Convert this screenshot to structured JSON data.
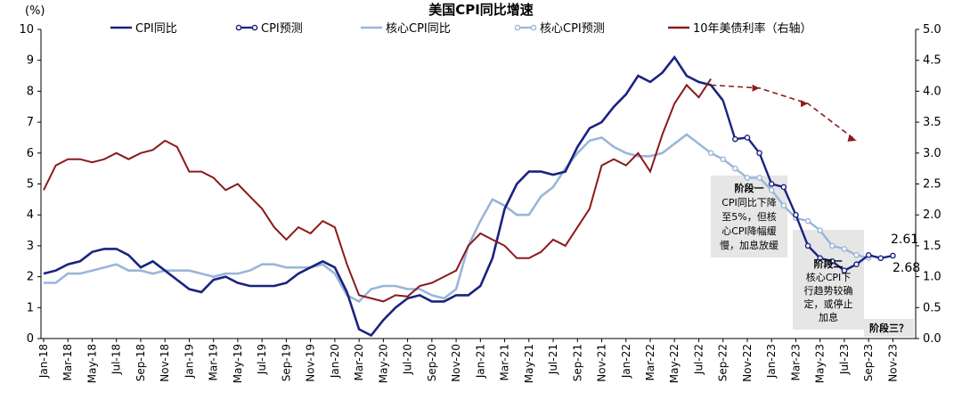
{
  "chart_data": {
    "type": "line",
    "title": "美国CPI同比增速",
    "y_unit": "(%)",
    "ylim_left": [
      0,
      10
    ],
    "ylim_right": [
      0,
      5
    ],
    "yticks_left": [
      "0",
      "1",
      "2",
      "3",
      "4",
      "5",
      "6",
      "7",
      "8",
      "9",
      "10"
    ],
    "yticks_right": [
      "0.0",
      "0.5",
      "1.0",
      "1.5",
      "2.0",
      "2.5",
      "3.0",
      "3.5",
      "4.0",
      "4.5",
      "5.0"
    ],
    "x_ticks": [
      "Jan-18",
      "Mar-18",
      "May-18",
      "Jul-18",
      "Sep-18",
      "Nov-18",
      "Jan-19",
      "Mar-19",
      "May-19",
      "Jul-19",
      "Sep-19",
      "Nov-19",
      "Jan-20",
      "Mar-20",
      "May-20",
      "Jul-20",
      "Sep-20",
      "Nov-20",
      "Jan-21",
      "Mar-21",
      "May-21",
      "Jul-21",
      "Sep-21",
      "Nov-21",
      "Jan-22",
      "Mar-22",
      "May-22",
      "Jul-22",
      "Sep-22",
      "Nov-22",
      "Jan-23",
      "Mar-23",
      "May-23",
      "Jul-23",
      "Sep-23",
      "Nov-23"
    ],
    "legend": [
      "CPI同比",
      "CPI预测",
      "核心CPI同比",
      "核心CPI预测",
      "10年美债利率（右轴）"
    ],
    "series": [
      {
        "name": "CPI同比",
        "color": "#1a237e",
        "values": [
          2.1,
          2.2,
          2.4,
          2.5,
          2.8,
          2.9,
          2.9,
          2.7,
          2.3,
          2.5,
          2.2,
          1.9,
          1.6,
          1.5,
          1.9,
          2.0,
          1.8,
          1.7,
          1.7,
          1.7,
          1.8,
          2.1,
          2.3,
          2.5,
          2.3,
          1.5,
          0.3,
          0.1,
          0.6,
          1.0,
          1.3,
          1.4,
          1.2,
          1.2,
          1.4,
          1.4,
          1.7,
          2.6,
          4.2,
          5.0,
          5.4,
          5.4,
          5.3,
          5.4,
          6.2,
          6.8,
          7.0,
          7.5,
          7.9,
          8.5,
          8.3,
          8.6,
          9.1,
          8.5,
          8.3,
          8.2,
          7.7
        ]
      },
      {
        "name": "CPI预测",
        "color": "#1a237e",
        "values": [
          7.7,
          6.45,
          6.5,
          6.0,
          5.0,
          4.9,
          4.0,
          3.0,
          2.6,
          2.5,
          2.2,
          2.4,
          2.7,
          2.6,
          2.68
        ]
      },
      {
        "name": "核心CPI同比",
        "color": "#9ab6d8",
        "values": [
          1.8,
          1.8,
          2.1,
          2.1,
          2.2,
          2.3,
          2.4,
          2.2,
          2.2,
          2.1,
          2.2,
          2.2,
          2.2,
          2.1,
          2.0,
          2.1,
          2.1,
          2.2,
          2.4,
          2.4,
          2.3,
          2.3,
          2.3,
          2.4,
          2.1,
          1.4,
          1.2,
          1.6,
          1.7,
          1.7,
          1.6,
          1.6,
          1.4,
          1.3,
          1.6,
          3.0,
          3.8,
          4.5,
          4.3,
          4.0,
          4.0,
          4.6,
          4.9,
          5.5,
          6.0,
          6.4,
          6.5,
          6.2,
          6.0,
          5.9,
          5.9,
          6.0,
          6.3,
          6.6,
          6.3
        ]
      },
      {
        "name": "核心CPI预测",
        "color": "#9ab6d8",
        "values": [
          6.3,
          6.0,
          5.8,
          5.5,
          5.2,
          5.2,
          4.8,
          4.3,
          3.9,
          3.8,
          3.5,
          3.0,
          2.9,
          2.7,
          2.61
        ]
      },
      {
        "name": "10年美债利率（右轴）",
        "color": "#8b1a1a",
        "values": [
          2.4,
          2.8,
          2.9,
          2.9,
          2.85,
          2.9,
          3.0,
          2.9,
          3.0,
          3.05,
          3.2,
          3.1,
          2.7,
          2.7,
          2.6,
          2.4,
          2.5,
          2.3,
          2.1,
          1.8,
          1.6,
          1.8,
          1.7,
          1.9,
          1.8,
          1.2,
          0.7,
          0.65,
          0.6,
          0.7,
          0.68,
          0.85,
          0.9,
          1.0,
          1.1,
          1.5,
          1.7,
          1.6,
          1.5,
          1.3,
          1.3,
          1.4,
          1.6,
          1.5,
          1.8,
          2.1,
          2.8,
          2.9,
          2.8,
          3.0,
          2.7,
          3.3,
          3.8,
          4.1,
          3.9,
          4.2
        ]
      },
      {
        "name": "10年美债利率预测",
        "color": "#8b1a1a",
        "values": [
          4.1,
          4.05,
          3.8,
          3.2
        ]
      }
    ],
    "value_labels": [
      "2.61",
      "2.68"
    ],
    "annotations": [
      {
        "title": "阶段一",
        "lines": [
          "CPI同比下降",
          "至5%，但核",
          "心CPI降幅缓",
          "慢，加息放缓"
        ]
      },
      {
        "title": "阶段二",
        "lines": [
          "核心CPI下",
          "行趋势较确",
          "定，或停止",
          "加息"
        ]
      },
      {
        "title": "阶段三？",
        "lines": []
      }
    ]
  }
}
